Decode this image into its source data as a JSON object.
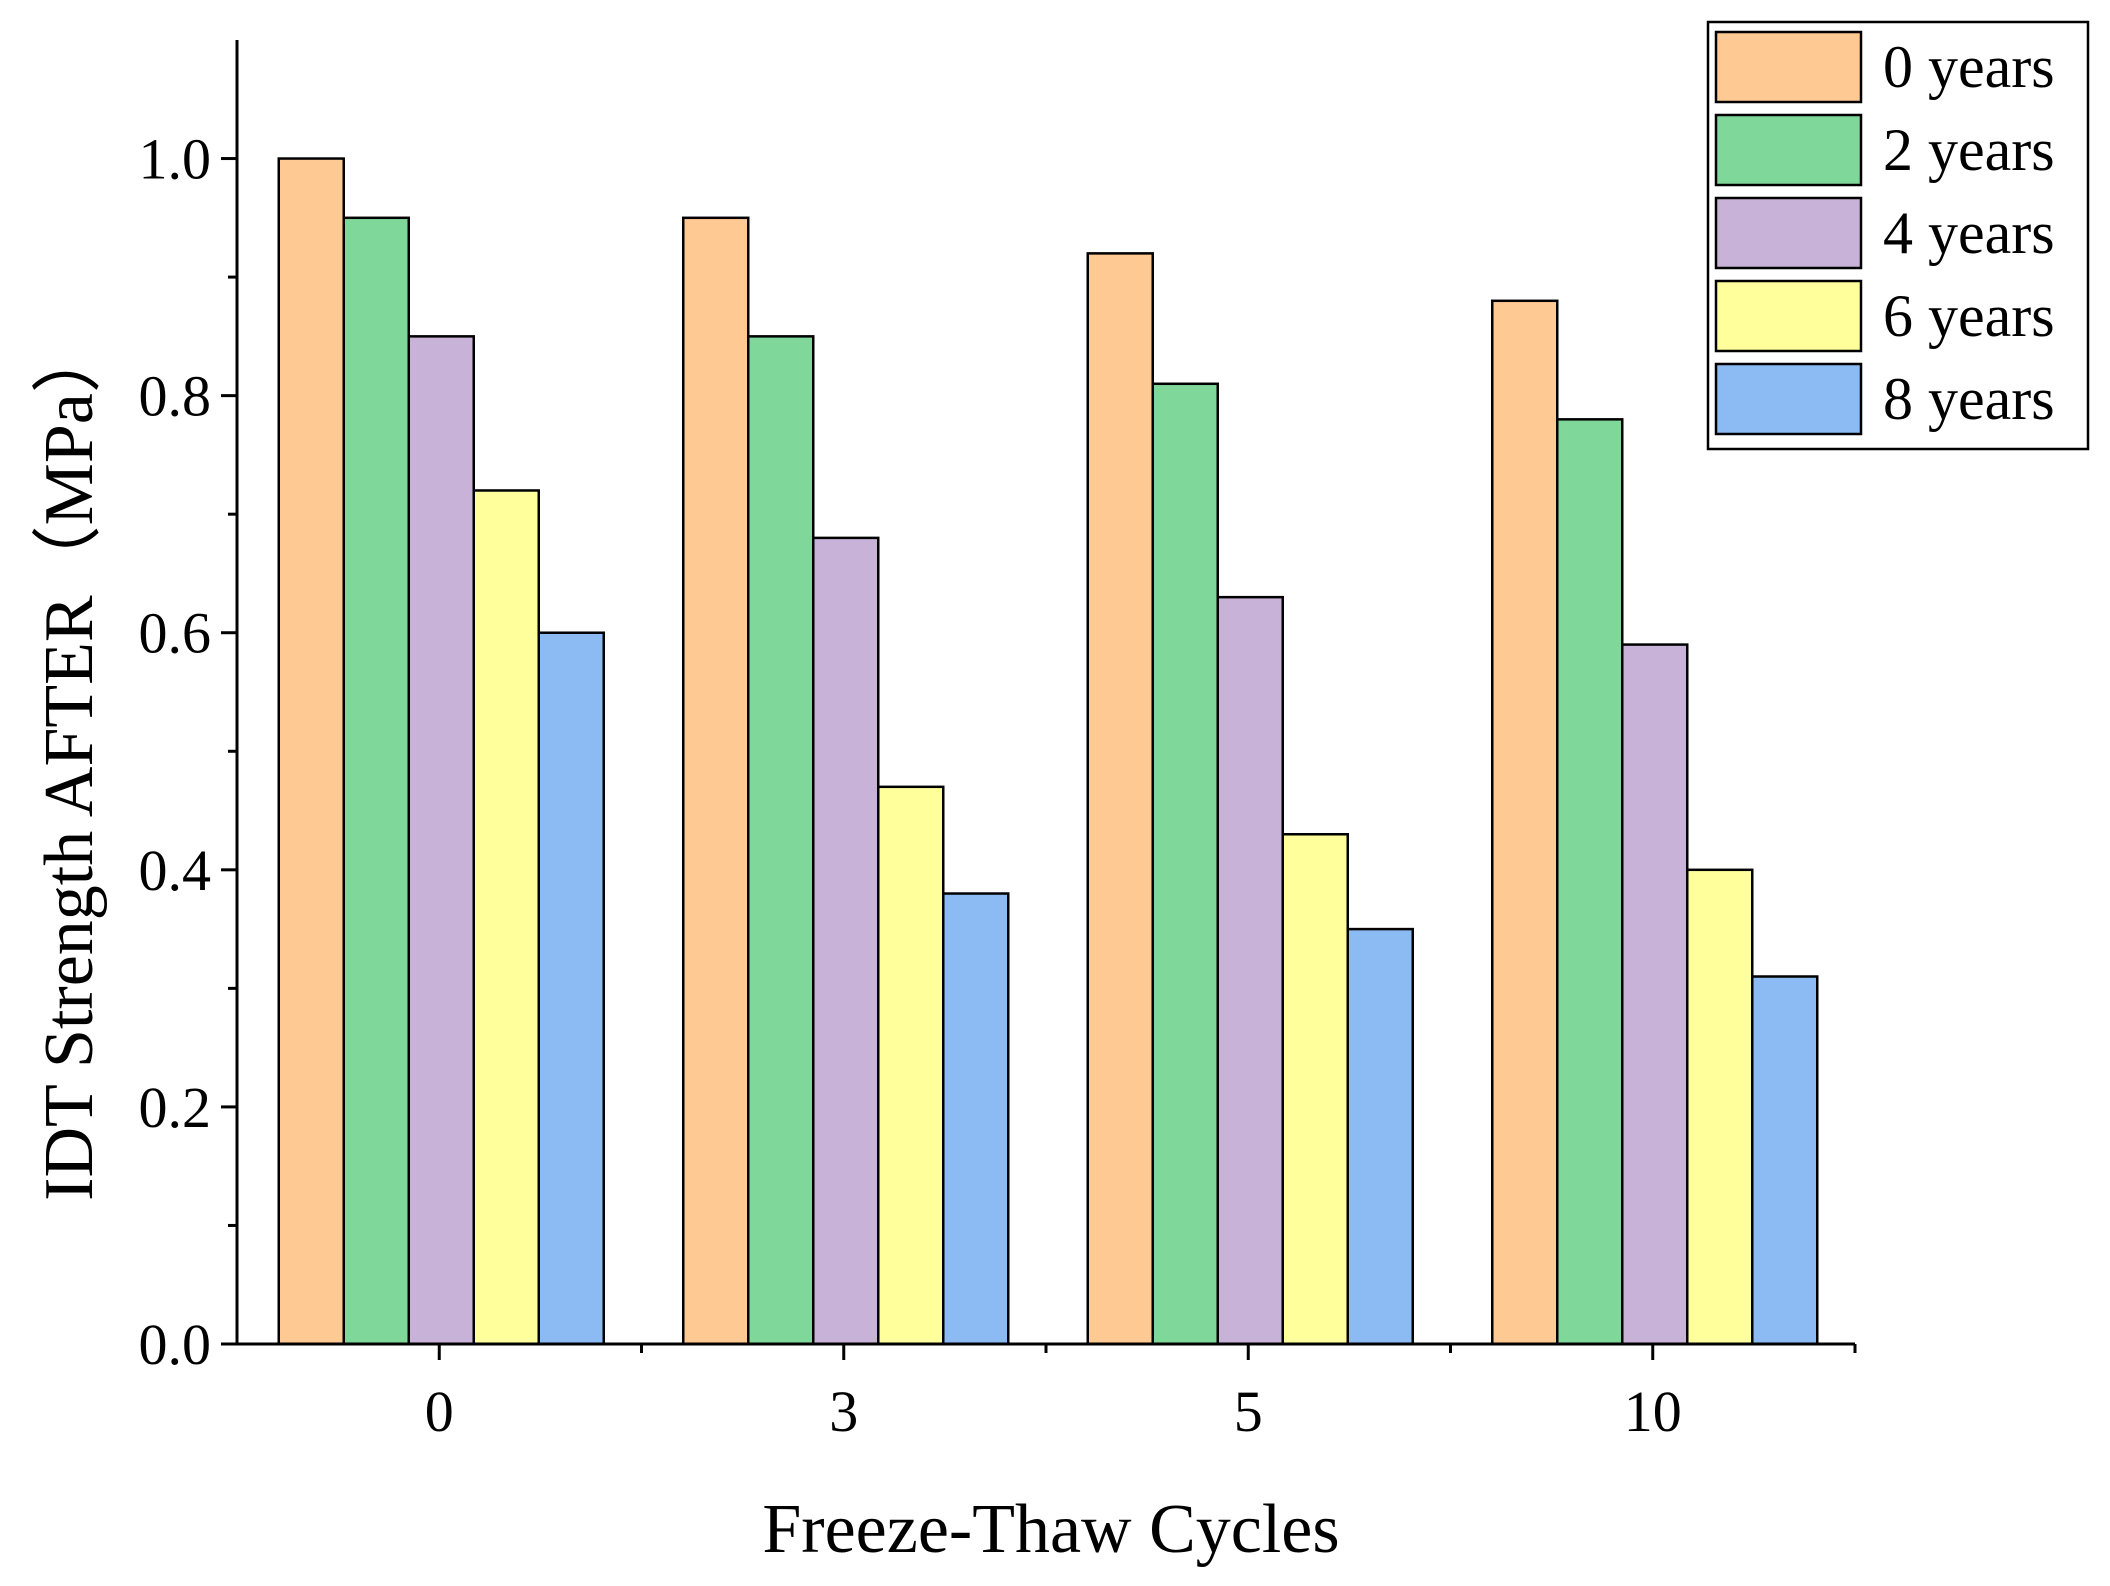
{
  "chart_data": {
    "type": "bar",
    "title": "",
    "xlabel": "Freeze-Thaw Cycles",
    "ylabel": "IDT Strength AFTER（MPa）",
    "categories": [
      "0",
      "3",
      "5",
      "10"
    ],
    "ylim": [
      0,
      1.1
    ],
    "yticks": [
      "0.0",
      "0.2",
      "0.4",
      "0.6",
      "0.8",
      "1.0"
    ],
    "ytick_values": [
      0,
      0.2,
      0.4,
      0.6,
      0.8,
      1.0
    ],
    "grid": false,
    "legend_position": "top-right",
    "series": [
      {
        "name": "0 years",
        "color": "#FFC994",
        "values": [
          1.0,
          0.95,
          0.92,
          0.88
        ]
      },
      {
        "name": "2 years",
        "color": "#7FD89A",
        "values": [
          0.95,
          0.85,
          0.81,
          0.78
        ]
      },
      {
        "name": "4 years",
        "color": "#C9B2D8",
        "values": [
          0.85,
          0.68,
          0.63,
          0.59
        ]
      },
      {
        "name": "6 years",
        "color": "#FFFF9C",
        "values": [
          0.72,
          0.47,
          0.43,
          0.4
        ]
      },
      {
        "name": "8 years",
        "color": "#8BBBF2",
        "values": [
          0.6,
          0.38,
          0.35,
          0.31
        ]
      }
    ]
  }
}
